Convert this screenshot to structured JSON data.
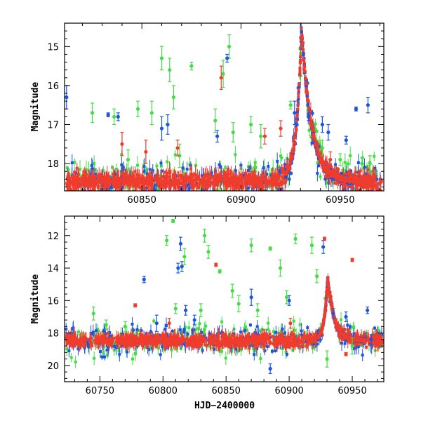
{
  "colors": {
    "green": "#44dd44",
    "blue": "#1a56e0",
    "red": "#f03c2c"
  },
  "chart_data": [
    {
      "type": "scatter",
      "title": "",
      "xlabel": "",
      "ylabel": "Magnitude",
      "xlim": [
        60811,
        60972
      ],
      "ylim": [
        18.7,
        14.4
      ],
      "y_inverted": true,
      "xticks": [
        60850,
        60900,
        60950
      ],
      "xminor_step": 10,
      "yticks": [
        15,
        16,
        17,
        18
      ],
      "yminor_step": 0.2,
      "series": [
        {
          "name": "green",
          "color": "#44dd44",
          "points": [
            {
              "x": 60825,
              "y": 16.7,
              "e": 0.25
            },
            {
              "x": 60836,
              "y": 16.8,
              "e": 0.2
            },
            {
              "x": 60843,
              "y": 17.9,
              "e": 0.25
            },
            {
              "x": 60848,
              "y": 16.6,
              "e": 0.2
            },
            {
              "x": 60855,
              "y": 16.7,
              "e": 0.3
            },
            {
              "x": 60860,
              "y": 15.3,
              "e": 0.3
            },
            {
              "x": 60864,
              "y": 15.6,
              "e": 0.3
            },
            {
              "x": 60866,
              "y": 16.3,
              "e": 0.3
            },
            {
              "x": 60869,
              "y": 17.8,
              "e": 0.3
            },
            {
              "x": 60875,
              "y": 15.5,
              "e": 0.1
            },
            {
              "x": 60887,
              "y": 16.9,
              "e": 0.3
            },
            {
              "x": 60891,
              "y": 15.7,
              "e": 0.35
            },
            {
              "x": 60894,
              "y": 15.0,
              "e": 0.3
            },
            {
              "x": 60896,
              "y": 17.2,
              "e": 0.25
            },
            {
              "x": 60905,
              "y": 17.0,
              "e": 0.2
            },
            {
              "x": 60910,
              "y": 17.3,
              "e": 0.3
            },
            {
              "x": 60925,
              "y": 16.5,
              "e": 0.1
            },
            {
              "x": 60941,
              "y": 17.6,
              "e": 0.2
            },
            {
              "x": 60950,
              "y": 17.9,
              "e": 0.15
            },
            {
              "x": 60961,
              "y": 18.0,
              "e": 0.15
            },
            {
              "x": 60965,
              "y": 18.0,
              "e": 0.2
            }
          ]
        },
        {
          "name": "blue",
          "color": "#1a56e0",
          "points": [
            {
              "x": 60812,
              "y": 16.3,
              "e": 0.3
            },
            {
              "x": 60833,
              "y": 16.75,
              "e": 0.05
            },
            {
              "x": 60838,
              "y": 16.8,
              "e": 0.1
            },
            {
              "x": 60860,
              "y": 17.1,
              "e": 0.3
            },
            {
              "x": 60863,
              "y": 17.0,
              "e": 0.25
            },
            {
              "x": 60888,
              "y": 17.3,
              "e": 0.15
            },
            {
              "x": 60893,
              "y": 15.3,
              "e": 0.1
            },
            {
              "x": 60927,
              "y": 16.7,
              "e": 0.3
            },
            {
              "x": 60934,
              "y": 16.8,
              "e": 0.1
            },
            {
              "x": 60941,
              "y": 17.0,
              "e": 0.2
            },
            {
              "x": 60944,
              "y": 17.2,
              "e": 0.2
            },
            {
              "x": 60953,
              "y": 17.4,
              "e": 0.1
            },
            {
              "x": 60958,
              "y": 16.6,
              "e": 0.05
            },
            {
              "x": 60964,
              "y": 16.5,
              "e": 0.2
            }
          ]
        },
        {
          "name": "red",
          "color": "#f03c2c",
          "points": [
            {
              "x": 60840,
              "y": 17.5,
              "e": 0.3
            },
            {
              "x": 60852,
              "y": 17.7,
              "e": 0.3
            },
            {
              "x": 60868,
              "y": 17.6,
              "e": 0.2
            },
            {
              "x": 60890,
              "y": 15.8,
              "e": 0.3
            },
            {
              "x": 60912,
              "y": 17.3,
              "e": 0.2
            },
            {
              "x": 60920,
              "y": 17.1,
              "e": 0.2
            },
            {
              "x": 60945,
              "y": 17.9,
              "e": 0.2
            }
          ]
        }
      ]
    },
    {
      "type": "scatter",
      "title": "",
      "xlabel": "HJD−2400000",
      "ylabel": "Magnitude",
      "xlim": [
        60722,
        60975
      ],
      "ylim": [
        21.0,
        10.8
      ],
      "y_inverted": true,
      "xticks": [
        60750,
        60800,
        60850,
        60900,
        60950
      ],
      "xminor_step": 10,
      "yticks": [
        12,
        14,
        16,
        18,
        20
      ],
      "yminor_step": 0.4,
      "series": [
        {
          "name": "green",
          "color": "#44dd44",
          "points": [
            {
              "x": 60745,
              "y": 16.8,
              "e": 0.4
            },
            {
              "x": 60755,
              "y": 17.5,
              "e": 0.3
            },
            {
              "x": 60770,
              "y": 17.6,
              "e": 0.3
            },
            {
              "x": 60803,
              "y": 12.3,
              "e": 0.3
            },
            {
              "x": 60808,
              "y": 11.1,
              "e": 0.1
            },
            {
              "x": 60810,
              "y": 16.5,
              "e": 0.3
            },
            {
              "x": 60817,
              "y": 13.3,
              "e": 0.5
            },
            {
              "x": 60830,
              "y": 16.6,
              "e": 0.4
            },
            {
              "x": 60833,
              "y": 12.0,
              "e": 0.4
            },
            {
              "x": 60836,
              "y": 13.0,
              "e": 0.4
            },
            {
              "x": 60845,
              "y": 14.2,
              "e": 0.1
            },
            {
              "x": 60855,
              "y": 15.4,
              "e": 0.4
            },
            {
              "x": 60860,
              "y": 16.2,
              "e": 0.5
            },
            {
              "x": 60870,
              "y": 12.6,
              "e": 0.4
            },
            {
              "x": 60875,
              "y": 16.6,
              "e": 0.4
            },
            {
              "x": 60885,
              "y": 12.8,
              "e": 0.1
            },
            {
              "x": 60893,
              "y": 14.0,
              "e": 0.5
            },
            {
              "x": 60898,
              "y": 15.8,
              "e": 0.4
            },
            {
              "x": 60905,
              "y": 12.2,
              "e": 0.3
            },
            {
              "x": 60918,
              "y": 12.6,
              "e": 0.5
            },
            {
              "x": 60922,
              "y": 14.5,
              "e": 0.4
            },
            {
              "x": 60950,
              "y": 18.8,
              "e": 0.5
            },
            {
              "x": 60930,
              "y": 19.6,
              "e": 0.5
            }
          ]
        },
        {
          "name": "blue",
          "color": "#1a56e0",
          "points": [
            {
              "x": 60785,
              "y": 14.7,
              "e": 0.2
            },
            {
              "x": 60795,
              "y": 17.4,
              "e": 0.5
            },
            {
              "x": 60812,
              "y": 14.0,
              "e": 0.3
            },
            {
              "x": 60814,
              "y": 12.5,
              "e": 0.4
            },
            {
              "x": 60815,
              "y": 13.9,
              "e": 0.3
            },
            {
              "x": 60818,
              "y": 16.6,
              "e": 0.3
            },
            {
              "x": 60825,
              "y": 17.2,
              "e": 0.3
            },
            {
              "x": 60870,
              "y": 15.8,
              "e": 0.5
            },
            {
              "x": 60885,
              "y": 20.2,
              "e": 0.3
            },
            {
              "x": 60900,
              "y": 16.0,
              "e": 0.3
            },
            {
              "x": 60927,
              "y": 12.7,
              "e": 0.4
            },
            {
              "x": 60935,
              "y": 16.8,
              "e": 0.3
            },
            {
              "x": 60945,
              "y": 17.0,
              "e": 0.3
            },
            {
              "x": 60962,
              "y": 16.6,
              "e": 0.2
            },
            {
              "x": 60965,
              "y": 18.4,
              "e": 0.3
            }
          ]
        },
        {
          "name": "red",
          "color": "#f03c2c",
          "points": [
            {
              "x": 60778,
              "y": 16.3,
              "e": 0.1
            },
            {
              "x": 60805,
              "y": 17.4,
              "e": 0.3
            },
            {
              "x": 60842,
              "y": 13.8,
              "e": 0.1
            },
            {
              "x": 60880,
              "y": 18.1,
              "e": 0.3
            },
            {
              "x": 60928,
              "y": 12.2,
              "e": 0.1
            },
            {
              "x": 60945,
              "y": 19.3,
              "e": 0.1
            },
            {
              "x": 60950,
              "y": 13.5,
              "e": 0.1
            },
            {
              "x": 60901,
              "y": 17.4,
              "e": 0.3
            }
          ]
        }
      ]
    }
  ],
  "light_curve_model": {
    "peak_hjd": 60930.5,
    "baseline_mag": 18.45,
    "peak_mag": 14.55,
    "rise_timescale_days": 2.6,
    "decay_timescale_days": 5.0,
    "baseline_scatter_mag": 0.15
  }
}
